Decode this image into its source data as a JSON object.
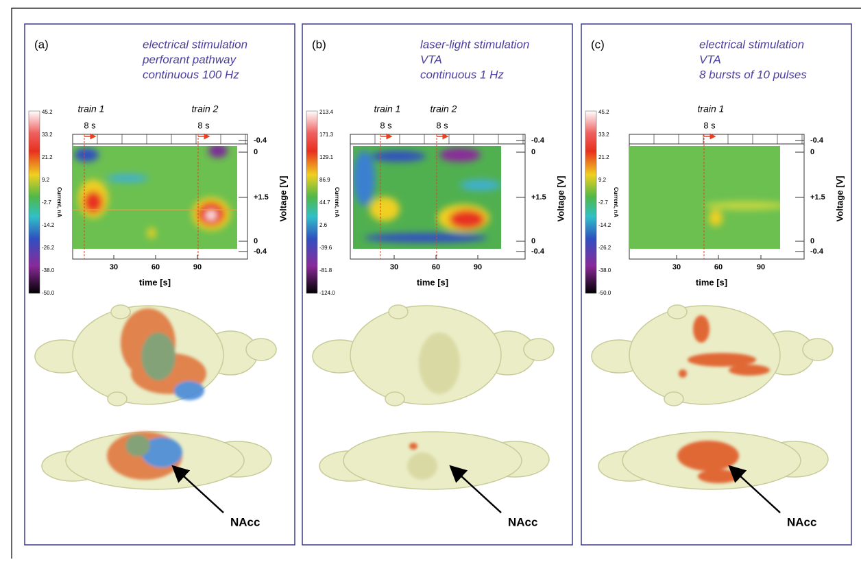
{
  "panels": [
    {
      "label": "(a)",
      "description": [
        "electrical stimulation",
        "perforant pathway",
        "continuous 100 Hz"
      ],
      "trains": [
        {
          "name": "train 1",
          "duration": "8 s"
        },
        {
          "name": "train 2",
          "duration": "8 s"
        }
      ],
      "colorbar": {
        "title": "Current, nA",
        "ticks": [
          "45.2",
          "33.2",
          "21.2",
          "9.2",
          "-2.7",
          "-14.2",
          "-26.2",
          "-38.0",
          "-50.0"
        ]
      },
      "voltage_axis": {
        "title": "Voltage [V]",
        "ticks": [
          "-0.4",
          "0",
          "+1.5",
          "0",
          "-0.4"
        ]
      },
      "time_axis": {
        "title": "time [s]",
        "ticks": [
          "30",
          "60",
          "90"
        ]
      },
      "callout": "NAcc"
    },
    {
      "label": "(b)",
      "description": [
        "laser-light stimulation",
        "VTA",
        "continuous 1 Hz"
      ],
      "trains": [
        {
          "name": "train 1",
          "duration": "8 s"
        },
        {
          "name": "train 2",
          "duration": "8 s"
        }
      ],
      "colorbar": {
        "title": "Current, nA",
        "ticks": [
          "213.4",
          "171.3",
          "129.1",
          "86.9",
          "44.7",
          "2.6",
          "-39.6",
          "-81.8",
          "-124.0"
        ]
      },
      "voltage_axis": {
        "title": "Voltage [V]",
        "ticks": [
          "-0.4",
          "0",
          "+1.5",
          "0",
          "-0.4"
        ]
      },
      "time_axis": {
        "title": "time [s]",
        "ticks": [
          "30",
          "60",
          "90"
        ]
      },
      "callout": "NAcc"
    },
    {
      "label": "(c)",
      "description": [
        "electrical stimulation",
        "VTA",
        "8 bursts of 10 pulses"
      ],
      "trains": [
        {
          "name": "train 1",
          "duration": "8 s"
        }
      ],
      "colorbar": {
        "title": "Current, nA",
        "ticks": [
          "45.2",
          "33.2",
          "21.2",
          "9.2",
          "-2.7",
          "-14.2",
          "-26.2",
          "-38.0",
          "-50.0"
        ]
      },
      "voltage_axis": {
        "title": "Voltage [V]",
        "ticks": [
          "-0.4",
          "0",
          "+1.5",
          "0",
          "-0.4"
        ]
      },
      "time_axis": {
        "title": "time [s]",
        "ticks": [
          "30",
          "60",
          "90"
        ]
      },
      "callout": "NAcc"
    }
  ]
}
